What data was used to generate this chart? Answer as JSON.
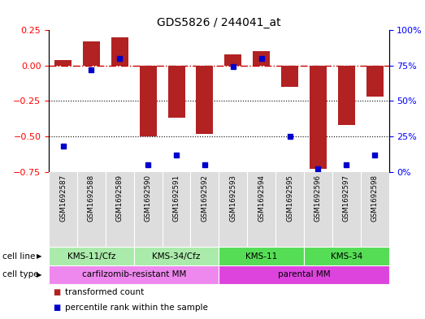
{
  "title": "GDS5826 / 244041_at",
  "samples": [
    "GSM1692587",
    "GSM1692588",
    "GSM1692589",
    "GSM1692590",
    "GSM1692591",
    "GSM1692592",
    "GSM1692593",
    "GSM1692594",
    "GSM1692595",
    "GSM1692596",
    "GSM1692597",
    "GSM1692598"
  ],
  "bar_values": [
    0.04,
    0.17,
    0.2,
    -0.5,
    -0.37,
    -0.48,
    0.08,
    0.1,
    -0.15,
    -0.73,
    -0.42,
    -0.22
  ],
  "percentile_values": [
    18,
    72,
    80,
    5,
    12,
    5,
    74,
    80,
    25,
    2,
    5,
    12
  ],
  "bar_color": "#b22222",
  "dot_color": "#0000cc",
  "left_ylim": [
    -0.75,
    0.25
  ],
  "left_yticks": [
    -0.75,
    -0.5,
    -0.25,
    0.0,
    0.25
  ],
  "right_ylim": [
    0,
    100
  ],
  "right_yticks": [
    0,
    25,
    50,
    75,
    100
  ],
  "right_yticklabels": [
    "0%",
    "25%",
    "50%",
    "75%",
    "100%"
  ],
  "zero_line_color": "#cc0000",
  "grid_color": "#000000",
  "bg_color": "#dddddd",
  "cell_line_groups": [
    {
      "label": "KMS-11/Cfz",
      "start": 0,
      "end": 3,
      "color": "#aaeaaa"
    },
    {
      "label": "KMS-34/Cfz",
      "start": 3,
      "end": 6,
      "color": "#aaeaaa"
    },
    {
      "label": "KMS-11",
      "start": 6,
      "end": 9,
      "color": "#55dd55"
    },
    {
      "label": "KMS-34",
      "start": 9,
      "end": 12,
      "color": "#55dd55"
    }
  ],
  "cell_type_groups": [
    {
      "label": "carfilzomib-resistant MM",
      "start": 0,
      "end": 6,
      "color": "#ee88ee"
    },
    {
      "label": "parental MM",
      "start": 6,
      "end": 12,
      "color": "#dd44dd"
    }
  ],
  "cell_line_label": "cell line",
  "cell_type_label": "cell type",
  "legend_items": [
    {
      "label": "transformed count",
      "color": "#b22222"
    },
    {
      "label": "percentile rank within the sample",
      "color": "#0000cc"
    }
  ],
  "bar_width": 0.6
}
